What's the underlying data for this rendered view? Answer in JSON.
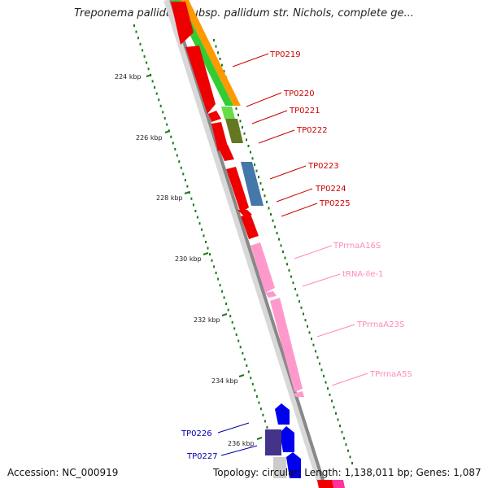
{
  "title": "Treponema pallidum subsp. pallidum str. Nichols, complete ge...",
  "footer": {
    "accession": "Accession: NC_000919",
    "summary": "Topology: circular; Length: 1,138,011 bp; Genes: 1,087"
  },
  "colors": {
    "protein_gene": "#ee0000",
    "rna_gene": "#ff99cc",
    "blue_label": "#0000aa",
    "tick": "#1a7a1a",
    "backbone": "#888888"
  },
  "scale_labels": [
    "224 kbp",
    "226 kbp",
    "228 kbp",
    "230 kbp",
    "232 kbp",
    "234 kbp",
    "236 kbp"
  ],
  "gene_labels": [
    {
      "name": "TP0219",
      "color": "#cc0000"
    },
    {
      "name": "TP0220",
      "color": "#cc0000"
    },
    {
      "name": "TP0221",
      "color": "#cc0000"
    },
    {
      "name": "TP0222",
      "color": "#cc0000"
    },
    {
      "name": "TP0223",
      "color": "#cc0000"
    },
    {
      "name": "TP0224",
      "color": "#cc0000"
    },
    {
      "name": "TP0225",
      "color": "#cc0000"
    },
    {
      "name": "TPrrnaA16S",
      "color": "#ff88bb"
    },
    {
      "name": "tRNA-Ile-1",
      "color": "#ff88bb"
    },
    {
      "name": "TPrrnaA23S",
      "color": "#ff88bb"
    },
    {
      "name": "TPrrnaA5S",
      "color": "#ff88bb"
    },
    {
      "name": "TP0226",
      "color": "#0000aa"
    },
    {
      "name": "TP0227",
      "color": "#0000aa"
    }
  ]
}
